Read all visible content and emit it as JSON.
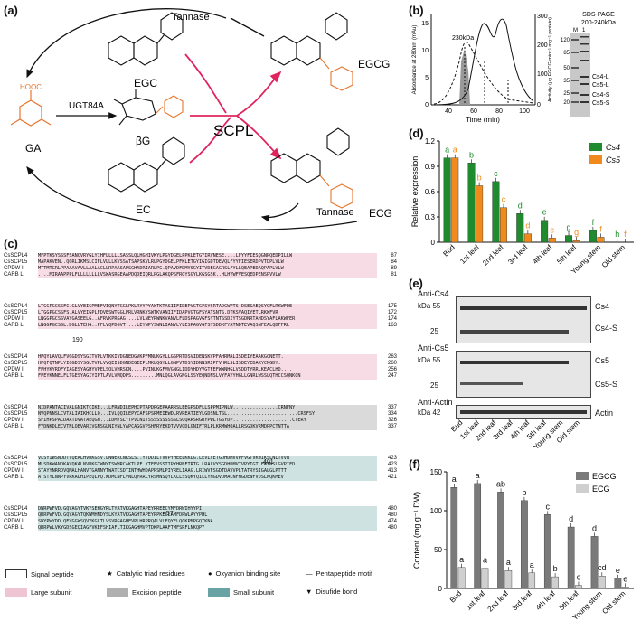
{
  "panels": {
    "a": "(a)",
    "b": "(b)",
    "c": "(c)",
    "d": "(d)",
    "e": "(e)",
    "f": "(f)"
  },
  "pathway": {
    "tannase_top": "Tannase",
    "tannase_bottom": "Tannase",
    "ugt": "UGT84A",
    "scpl": "SCPL",
    "ga": "GA",
    "bg": "βG",
    "egc": "EGC",
    "ec": "EC",
    "egcg": "EGCG",
    "ecg": "ECG"
  },
  "chromatogram": {
    "ylabel_left": "Absorbance at 280nm (mAu)",
    "ylabel_right": "Activity (μg EGCG min⁻¹ mg⁻¹ protein)",
    "xlabel": "Time (min)",
    "peak_label": "230kDa",
    "xticks": [
      "40",
      "60",
      "80",
      "100"
    ],
    "yticks_left": [
      "0",
      "5",
      "10",
      "15"
    ],
    "yticks_right": [
      "0",
      "100",
      "200",
      "300"
    ]
  },
  "sds": {
    "title1": "SDS-PAGE",
    "title2": "200-240kDa",
    "lanes": [
      "M",
      "1"
    ],
    "markers": [
      "120",
      "85",
      "50",
      "35",
      "25",
      "20"
    ],
    "bands": [
      "Cs4-L",
      "Cs5-L",
      "Cs4-S",
      "Cs5-S"
    ]
  },
  "alignment": {
    "groups": [
      {
        "rows": [
          {
            "name": "CsSCPL4",
            "seq": "MFPTKSYSSSFSANCVRYGLYIHFLLLLLSASSLQLHGHIVKYLPGYDGELPPKLETGYIRVNESE....LFYYFIESQGNPQEDPILLW",
            "num": "87"
          },
          {
            "name": "CsSCPL5",
            "seq": "MAPAKVEN..QQRLIKMSLCIFLVLLLKVSSATSAPSKVLRLPGYDGELPFKLETGYIGIGDTDEVQLFYYFIESERDPVTDPLVLW",
            "num": "84"
          },
          {
            "name": "CPDW II",
            "seq": "MTTMTGRLPPAAAVAVLLAALACLLRPAASAPSGHADRIARLPG.QPAVDFDMYSGYITVDEGAGRSLFYLLQEAPEDAQPAPLVLW",
            "num": "89"
          },
          {
            "name": "CARB L",
            "seq": "....MIRAAPPPLFLLLLLLLLVSWASRGEAAPDQDEIQRLPGLAKQPSFRQYSGYLKGSGSK..HLHYWFVESQEDPENSPVVLW",
            "num": "81"
          }
        ]
      },
      {
        "rows": [
          {
            "name": "CsSCPL4",
            "seq": "LTGGPGCSSFC.GLVYEIGPMEFVIQNYTGGLPKLRYYPYAWTKTASIIFIDEPVGTGFSYSRTADGWPTS.DSESAEQSYQFLRKWFDE",
            "num": "175"
          },
          {
            "name": "CsSCPL5",
            "seq": "LTGGPGCSSFS.ALVYEIGPLFDVESWTGGLPRLVRNKYSWTKVANIIFIDAPVGTGFSYATSNTS.DTKSVAQIYETLRKWFVR",
            "num": "172"
          },
          {
            "name": "CPDW II",
            "seq": "LNGGPGCSSVAYGASEELG..AFRVKPRGAG....LVLNEYRWNKVANVLFLDSPAGVGFSYTNTSSDIYTSGDNRTAHDSYAFLAKWFER",
            "num": "174"
          },
          {
            "name": "CARB L",
            "seq": "LNGGPGCSSL.DGLLTEHG..PFLVQPDGVT....LEYNPYSWNLIANVLYLESPAGVGFSYSDDKFYATNDTEVAQSNFEALQDFFRL",
            "num": "163"
          }
        ]
      },
      {
        "rows": [
          {
            "name": "CsSCPL4",
            "seq": "HPQYLAVQLFVGGDSYSGITVPLVTKKIVDGNEDGVKPFMNLKGYLLGSPRTDSVIDENSKVPFAHRMALISDEIYEAAKGCNETT.",
            "num": "263"
          },
          {
            "name": "CsSCPL5",
            "seq": "HPQFQTNPLYIGGDSYSGLTVPLVVQEISDGNDEGIEPLMKLQGYLLGNPVTDSYIDNNSRIPFVHRLSLISDEYEDAKYCNGDY.",
            "num": "260"
          },
          {
            "name": "CPDW II",
            "seq": "FPHYKYRDFYIAGESYAGHYVPELSQLVHRSKN....PVINLKGFMVGNGLIDDYHDYVGTFEFWWNHGLVSDDTYRRLKEACLHD....",
            "num": "256"
          },
          {
            "name": "CARB L",
            "seq": "FPEYKNNELFLTGESYAGIYIPTLAVLVMQDPS.........MNLQGLAVGNGLSSYEQNDNSLVYFAYYHGLLGNRLWSSLQTHCCSQNKCN",
            "num": "247"
          }
        ]
      },
      {
        "rows": [
          {
            "name": "CsSCPL4",
            "seq": "NIDPANTACIVALGNIKTCIKE...LFRNDILEPHCPTAPDPGEPAARRSLEEGPSDFLLSPPMIPNLW................CRNFNY",
            "num": "337"
          },
          {
            "name": "CsSCPL5",
            "seq": "NVQPNNSLCVTALIAIKHCLLQ...IVLQQILEPYCAFSPSRMEIEWDLRVREATIEYLGDSNLTSL.........................CRSFSY",
            "num": "334"
          },
          {
            "name": "CPDW II",
            "seq": "SFIHPSPACDAATDVATAEQGN...IDMYSLYTPVCNITSSSSSSSSSSLSQQRRSRGRYPWLTGSYDP.....................CTERY",
            "num": "326"
          },
          {
            "name": "CARB L",
            "seq": "FYDNKDLECVTNLQEVARIVGNSGLNIYNLYAPCAGGVPSHFRYEKDTVVVQDLGNIFTRLPLKRMWHQALLRSGDKVRMDPPCTNTTA",
            "num": "337"
          }
        ]
      },
      {
        "rows": [
          {
            "name": "CsSCPL4",
            "seq": "VLSYIWSNDDTVQEALHVRKGSV.LNWERCNKSLS..YTDDILTVVPYHEELKKLG.LEVLVETGDHDMVVPFVGTVKWIKSLNLTVVN",
            "num": "423"
          },
          {
            "name": "CsSCPL5",
            "seq": "MLSDKWANDKAVQKALNVRKGTWNYTSWHRCAKTLPF.YTEEVSSTIPYHRNFTRTG.LRALVYSGDHDMVTVPYIGTLEWINSLGVPIFD",
            "num": "423"
          },
          {
            "name": "CPDW II",
            "seq": "STAYYNRRDVQMALHANVTGAMNYTWATCSDTINTHWHDAPRSMLPIYRELIAAG.LRIWVFSGDTDAVVPLTATRYSIGALGLPTTT",
            "num": "413"
          },
          {
            "name": "CARB L",
            "seq": "A.STYLNNPYVRKALHIPEQLPQ.WDMCNFLVNLQYRRLYRSMNSQYLKLLSSQKYQILLYNGDVDMACNFMGDEWFVDSLNQKMEV",
            "num": "421"
          }
        ]
      },
      {
        "rows": [
          {
            "name": "CsSCPL4",
            "seq": "DWRPWFVD.GQVAGYTVKYSEHGYRLTYATVKGAGHTAPEYRREECYMFDRWIHYYPI.",
            "num": "480"
          },
          {
            "name": "CsSCPL5",
            "seq": "QRRPWFVD.GQVAGYTQKWMHNDYSLKYATVKGAGHTAPEYRPKECLAMFDRWLAYYPHL",
            "num": "480"
          },
          {
            "name": "CPDW II",
            "seq": "SWYPWYDD.QEVGGWSQVYKGLTLVSVRGAGHEVPLHRPRQALVLFQYFLQGKPMPGQTKNA",
            "num": "474"
          },
          {
            "name": "CARB L",
            "seq": "QRRPWLVKYGDSGEQIAGFVKEFSHIAFLTIKGAGHMVPTDKPLAAFTMFSRFLNKQPY",
            "num": "480"
          }
        ]
      }
    ],
    "marks": [
      "190",
      "401",
      "457"
    ],
    "legend": {
      "signal": "Signal peptide",
      "catalytic": "Catalytic triad residues",
      "oxy": "Oxyanion binding site",
      "penta": "Pentapeptide motif",
      "large": "Large subunit",
      "excision": "Excision peptide",
      "small": "Small subunit",
      "disulfide": "Disufide bond"
    }
  },
  "chart_data": [
    {
      "type": "bar",
      "ylabel": "Relative expression",
      "categories": [
        "Bud",
        "1st leaf",
        "2nd leaf",
        "3rd leaf",
        "4th leaf",
        "5th leaf",
        "Young stem",
        "Old stem"
      ],
      "ylim": [
        0,
        1.2
      ],
      "yticks": [
        "0",
        "0.3",
        "0.6",
        "0.9",
        "1.2"
      ],
      "series": [
        {
          "name": "Cs4",
          "values": [
            1.0,
            0.94,
            0.72,
            0.34,
            0.26,
            0.08,
            0.14,
            0.0
          ],
          "letters": [
            "a",
            "b",
            "c",
            "d",
            "e",
            "g",
            "f",
            "h"
          ],
          "color": "#1f8a2e"
        },
        {
          "name": "Cs5",
          "values": [
            1.0,
            0.67,
            0.41,
            0.1,
            0.05,
            0.02,
            0.06,
            0.0
          ],
          "letters": [
            "a",
            "b",
            "c",
            "d",
            "e",
            "g",
            "f",
            "f"
          ],
          "color": "#f08a1c"
        }
      ]
    },
    {
      "type": "bar",
      "ylabel": "Content (mg g⁻¹ DW)",
      "categories": [
        "Bud",
        "1st leaf",
        "2nd leaf",
        "3rd leaf",
        "4th leaf",
        "5th leaf",
        "Young stem",
        "Old stem"
      ],
      "ylim": [
        0,
        150
      ],
      "yticks": [
        "0",
        "50",
        "100",
        "150"
      ],
      "series": [
        {
          "name": "EGCG",
          "values": [
            130,
            135,
            124,
            113,
            95,
            79,
            67,
            13
          ],
          "letters": [
            "a",
            "a",
            "ab",
            "b",
            "c",
            "d",
            "d",
            "e"
          ],
          "color": "#7a7a7a"
        },
        {
          "name": "ECG",
          "values": [
            27,
            26,
            23,
            20,
            15,
            4,
            16,
            2
          ],
          "letters": [
            "a",
            "a",
            "a",
            "a",
            "b",
            "c",
            "cd",
            "e"
          ],
          "color": "#cfcfcf"
        }
      ]
    }
  ],
  "western": {
    "titles": [
      "Anti-Cs4",
      "Anti-Cs5",
      "Anti-Actin"
    ],
    "kda": [
      "kDa 55",
      "25",
      "kDa 55",
      "25",
      "kDa 42"
    ],
    "bands": [
      "Cs4",
      "Cs4-S",
      "Cs5",
      "Cs5-S",
      "Actin"
    ],
    "lanes": [
      "Bud",
      "1st leaf",
      "2nd leaf",
      "3rd leaf",
      "4th leaf",
      "5th leaf",
      "Young stem",
      "Old stem"
    ]
  },
  "colors": {
    "red": "#e0245e",
    "orange": "#e8762d",
    "green": "#1f8a2e",
    "ycell": "#f3e03c",
    "blue": "#2130c4"
  }
}
